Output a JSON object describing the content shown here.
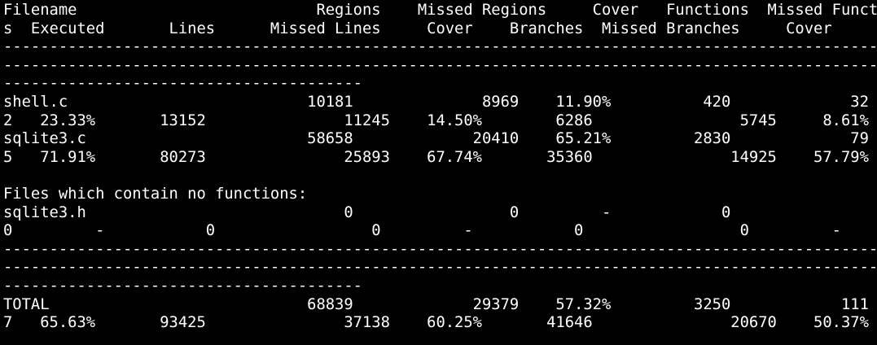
{
  "terminal": {
    "colors": {
      "background": "#000000",
      "foreground": "#ffffff"
    },
    "lines": [
      "Filename                          Regions    Missed Regions     Cover   Functions  Missed Function",
      "s  Executed       Lines      Missed Lines     Cover    Branches  Missed Branches     Cover",
      "-----------------------------------------------------------------------------------------------",
      "-----------------------------------------------------------------------------------------------",
      "---------------------------------------",
      "shell.c                          10181              8969    11.90%          420             32",
      "2   23.33%       13152               11245    14.50%        6286                5745     8.61%",
      "sqlite3.c                        58658             20410    65.21%         2830             79",
      "5   71.91%       80273               25893    67.74%       35360               14925    57.79%",
      "",
      "Files which contain no functions:",
      "sqlite3.h                            0                 0         -            0",
      "0         -           0                 0         -           0                 0         -",
      "-----------------------------------------------------------------------------------------------",
      "-----------------------------------------------------------------------------------------------",
      "---------------------------------------",
      "TOTAL                            68839             29379    57.32%         3250            111",
      "7   65.63%       93425               37138    60.25%       41646               20670    50.37%"
    ]
  }
}
